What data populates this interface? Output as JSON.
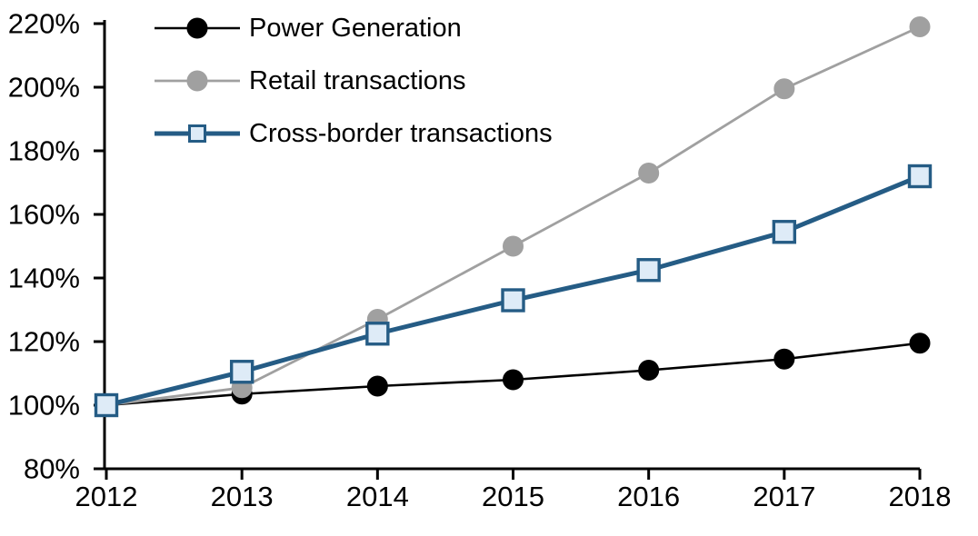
{
  "chart_data": {
    "type": "line",
    "title": "",
    "xlabel": "",
    "ylabel": "",
    "x": [
      2012,
      2013,
      2014,
      2015,
      2016,
      2017,
      2018
    ],
    "x_tick_labels": [
      "2012",
      "2013",
      "2014",
      "2015",
      "2016",
      "2017",
      "2018"
    ],
    "y_ticks": [
      80,
      100,
      120,
      140,
      160,
      180,
      200,
      220
    ],
    "y_tick_labels": [
      "80%",
      "100%",
      "120%",
      "140%",
      "160%",
      "180%",
      "200%",
      "220%"
    ],
    "ylim": [
      80,
      220
    ],
    "grid": false,
    "legend_position": "top-left-inside",
    "axis_color": "#000000",
    "background_color": "#ffffff",
    "series": [
      {
        "name": "Power Generation",
        "color": "#000000",
        "marker": "circle",
        "marker_fill": "#000000",
        "line_width": 2.6,
        "values": [
          100,
          103.5,
          106,
          108,
          111,
          114.5,
          119.5
        ]
      },
      {
        "name": "Retail transactions",
        "color": "#a0a0a0",
        "marker": "circle",
        "marker_fill": "#a0a0a0",
        "line_width": 2.8,
        "values": [
          100,
          105.5,
          127,
          150,
          173,
          199.5,
          219
        ]
      },
      {
        "name": "Cross-border transactions",
        "color": "#255c85",
        "marker": "square",
        "marker_fill": "#deebf7",
        "line_width": 5,
        "values": [
          100,
          110.5,
          122.5,
          133,
          142.5,
          154.5,
          172
        ]
      }
    ]
  }
}
